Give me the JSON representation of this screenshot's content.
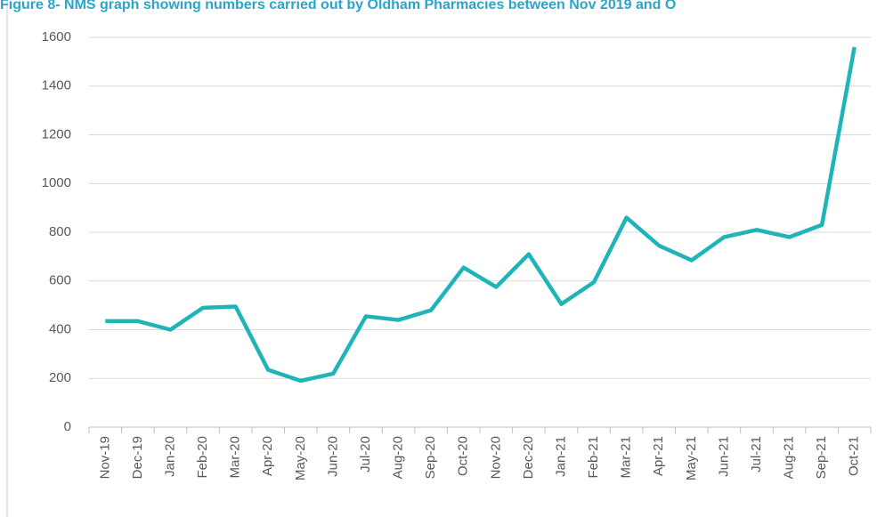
{
  "chart_data": {
    "type": "line",
    "title": "Figure 8- NMS graph showing numbers carried out by Oldham Pharmacies between Nov 2019 and O",
    "categories": [
      "Nov-19",
      "Dec-19",
      "Jan-20",
      "Feb-20",
      "Mar-20",
      "Apr-20",
      "May-20",
      "Jun-20",
      "Jul-20",
      "Aug-20",
      "Sep-20",
      "Oct-20",
      "Nov-20",
      "Dec-20",
      "Jan-21",
      "Feb-21",
      "Mar-21",
      "Apr-21",
      "May-21",
      "Jun-21",
      "Jul-21",
      "Aug-21",
      "Sep-21",
      "Oct-21"
    ],
    "series": [
      {
        "name": "NMS",
        "color": "#1fb5b8",
        "values": [
          435,
          435,
          400,
          490,
          495,
          235,
          190,
          220,
          455,
          440,
          480,
          655,
          575,
          710,
          505,
          595,
          860,
          745,
          685,
          780,
          810,
          780,
          830,
          1560
        ]
      }
    ],
    "ylim": [
      0,
      1600
    ],
    "yticks": [
      0,
      200,
      400,
      600,
      800,
      1000,
      1200,
      1400,
      1600
    ],
    "grid": true
  }
}
